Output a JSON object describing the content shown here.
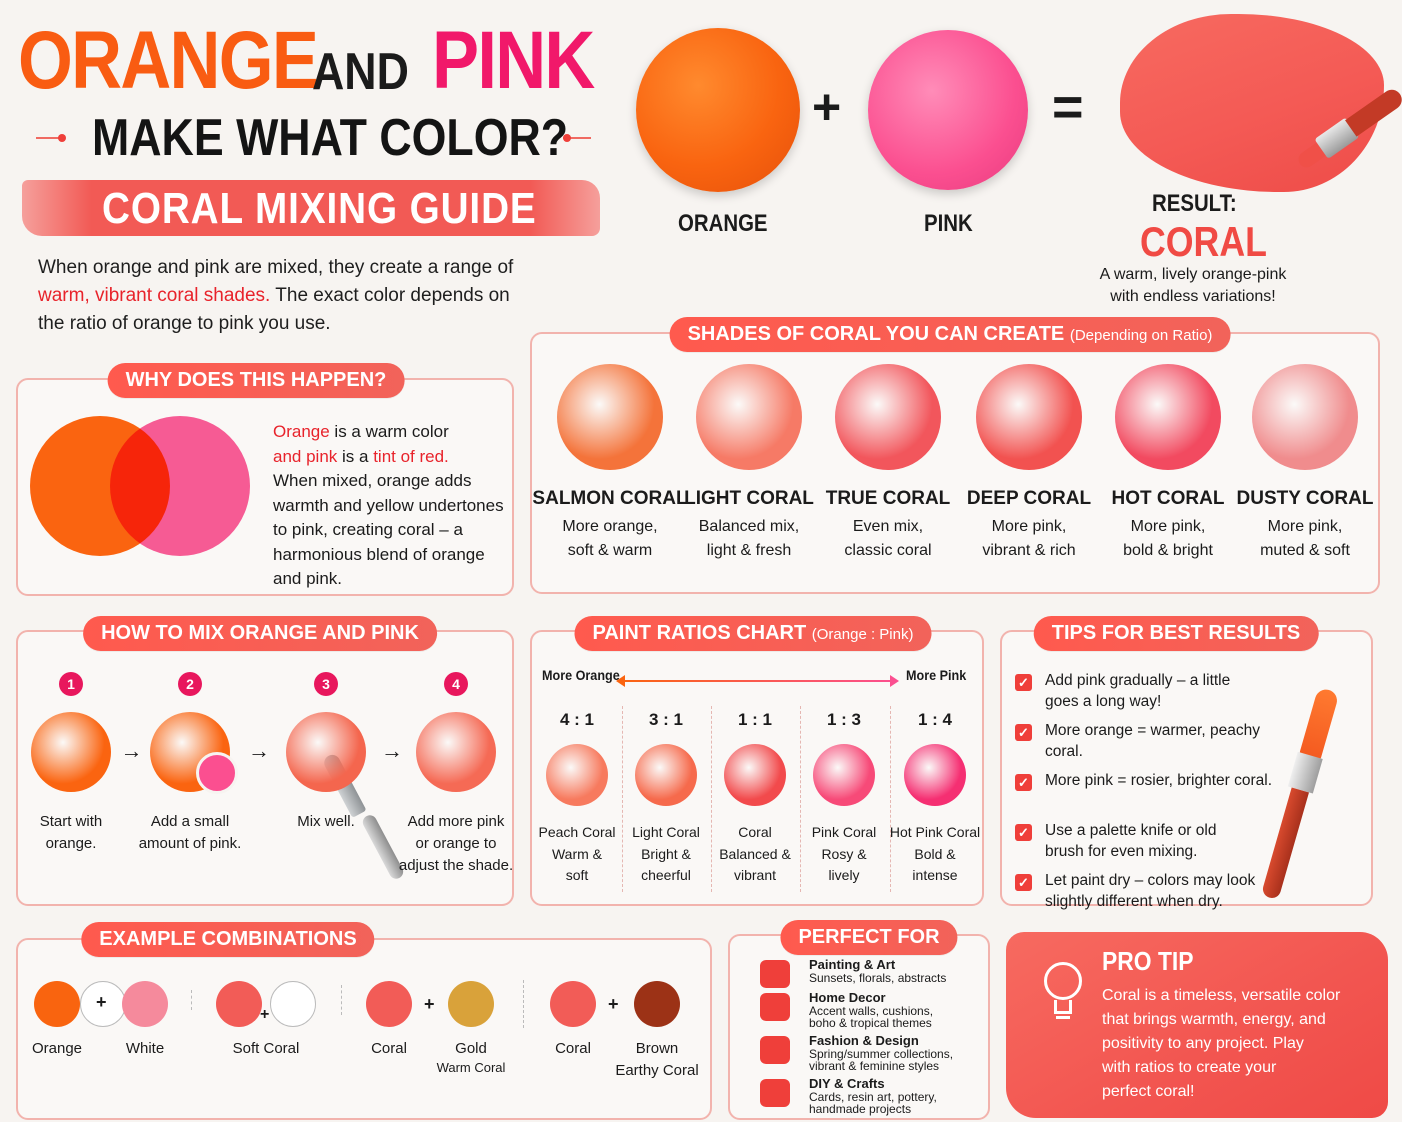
{
  "title": {
    "orange": "ORANGE",
    "and": "AND",
    "pink": "PINK",
    "line2": "MAKE WHAT COLOR?",
    "banner": "CORAL MIXING GUIDE"
  },
  "intro": {
    "part1": "When orange and pink are mixed, they create a range of",
    "highlight": "warm, vibrant coral shades.",
    "part2": "The exact color depends on",
    "part3": "the ratio of orange to pink you use."
  },
  "equation": {
    "orange_label": "ORANGE",
    "pink_label": "PINK",
    "plus": "+",
    "equals": "=",
    "result_label": "RESULT:",
    "result_name": "CORAL",
    "result_desc1": "A warm, lively orange-pink",
    "result_desc2": "with endless variations!"
  },
  "why": {
    "header": "WHY DOES THIS HAPPEN?",
    "l1a": "Orange",
    "l1b": " is a warm color",
    "l2a": "and pink",
    "l2b": " is a ",
    "l2c": "tint of red.",
    "l3": "When mixed, orange adds",
    "l4": "warmth and yellow undertones",
    "l5": "to pink, creating coral – a",
    "l6": "harmonious blend of orange",
    "l7": "and pink."
  },
  "shades": {
    "header": "SHADES OF CORAL YOU CAN CREATE",
    "header_sub": "(Depending on Ratio)",
    "items": [
      {
        "name": "SALMON CORAL",
        "d1": "More orange,",
        "d2": "soft & warm",
        "color": "#f4733a"
      },
      {
        "name": "LIGHT CORAL",
        "d1": "Balanced mix,",
        "d2": "light & fresh",
        "color": "#f67a66"
      },
      {
        "name": "TRUE CORAL",
        "d1": "Even mix,",
        "d2": "classic coral",
        "color": "#f2565c"
      },
      {
        "name": "DEEP CORAL",
        "d1": "More pink,",
        "d2": "vibrant & rich",
        "color": "#f25250"
      },
      {
        "name": "HOT CORAL",
        "d1": "More pink,",
        "d2": "bold & bright",
        "color": "#f24a60"
      },
      {
        "name": "DUSTY CORAL",
        "d1": "More pink,",
        "d2": "muted & soft",
        "color": "#f08c8d"
      }
    ]
  },
  "howto": {
    "header": "HOW TO MIX ORANGE AND PINK",
    "steps": [
      {
        "num": "1",
        "l1": "Start with",
        "l2": "orange.",
        "l3": ""
      },
      {
        "num": "2",
        "l1": "Add a small",
        "l2": "amount of pink.",
        "l3": ""
      },
      {
        "num": "3",
        "l1": "Mix well.",
        "l2": "",
        "l3": ""
      },
      {
        "num": "4",
        "l1": "Add more pink",
        "l2": "or orange to",
        "l3": "adjust the shade."
      }
    ],
    "arrow": "→"
  },
  "ratios": {
    "header": "PAINT RATIOS CHART",
    "header_sub": "(Orange : Pink)",
    "more_orange": "More Orange",
    "more_pink": "More Pink",
    "items": [
      {
        "ratio": "4 : 1",
        "name": "Peach Coral",
        "d1": "Warm &",
        "d2": "soft",
        "color": "#f77a5e"
      },
      {
        "ratio": "3 : 1",
        "name": "Light Coral",
        "d1": "Bright &",
        "d2": "cheerful",
        "color": "#f66a4c"
      },
      {
        "ratio": "1 : 1",
        "name": "Coral",
        "d1": "Balanced &",
        "d2": "vibrant",
        "color": "#f24a4c"
      },
      {
        "ratio": "1 : 3",
        "name": "Pink Coral",
        "d1": "Rosy &",
        "d2": "lively",
        "color": "#f74a78"
      },
      {
        "ratio": "1 : 4",
        "name": "Hot Pink Coral",
        "d1": "Bold &",
        "d2": "intense",
        "color": "#f52f72"
      }
    ]
  },
  "tips": {
    "header": "TIPS FOR BEST RESULTS",
    "items": [
      {
        "l1": "Add pink gradually – a little",
        "l2": "goes a long way!"
      },
      {
        "l1": "More orange = warmer, peachy",
        "l2": "coral."
      },
      {
        "l1": "More pink = rosier, brighter coral.",
        "l2": ""
      },
      {
        "l1": "Use a palette knife or old",
        "l2": "brush for even mixing."
      },
      {
        "l1": "Let paint dry – colors may look",
        "l2": "slightly different when dry."
      }
    ],
    "check": "✓"
  },
  "examples": {
    "header": "EXAMPLE COMBINATIONS",
    "plus": "+",
    "groups": [
      {
        "a": "Orange",
        "b": "White",
        "result": "",
        "ca": "#f9640f",
        "cb": "#f58a9c"
      },
      {
        "a": "Soft Coral",
        "b": "",
        "result": "",
        "ca": "#f25c57",
        "cb": "#ffffff"
      },
      {
        "a": "Coral",
        "b": "Gold",
        "result": "Warm Coral",
        "ca": "#f25c57",
        "cb": "#d9a23a"
      },
      {
        "a": "Coral",
        "b": "Brown",
        "result": "Earthy Coral",
        "ca": "#f25c57",
        "cb": "#9c3216"
      }
    ]
  },
  "perfect": {
    "header": "PERFECT FOR",
    "items": [
      {
        "title": "Painting & Art",
        "d1": "Sunsets, florals, abstracts",
        "d2": "",
        "icon": "palette-icon"
      },
      {
        "title": "Home Decor",
        "d1": "Accent walls, cushions,",
        "d2": "boho & tropical themes",
        "icon": "house-icon"
      },
      {
        "title": "Fashion & Design",
        "d1": "Spring/summer collections,",
        "d2": "vibrant & feminine styles",
        "icon": "shirt-icon"
      },
      {
        "title": "DIY & Crafts",
        "d1": "Cards, resin art, pottery,",
        "d2": "handmade projects",
        "icon": "gift-icon"
      }
    ]
  },
  "protip": {
    "header": "PRO TIP",
    "l1": "Coral is a timeless, versatile color",
    "l2": "that brings warmth, energy, and",
    "l3": "positivity to any project. Play",
    "l4": "with ratios to create your",
    "l5": "perfect coral!"
  },
  "colors": {
    "orange": "#fa6410",
    "pink": "#fb4f90",
    "coral": "#f45a55",
    "accent": "#ef3f3a"
  }
}
